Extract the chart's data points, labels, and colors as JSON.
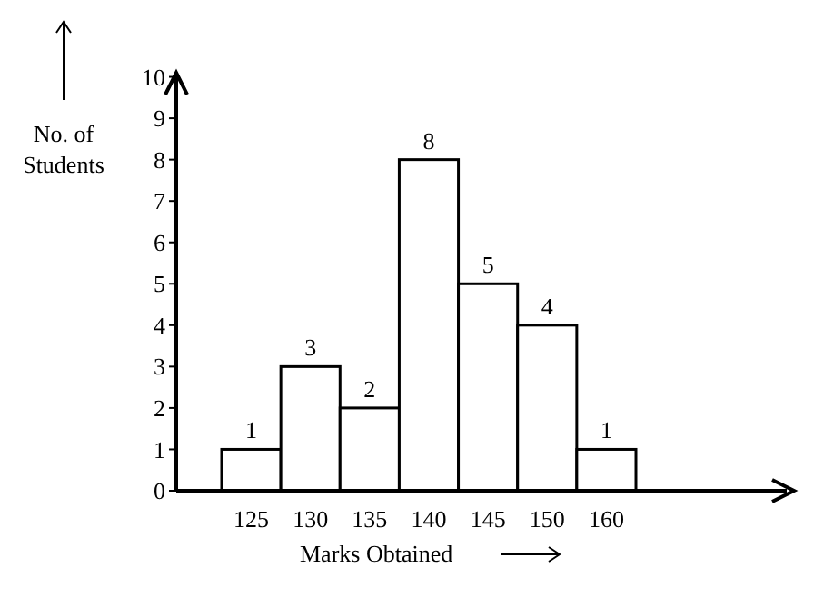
{
  "chart_data": {
    "type": "bar",
    "xlabel": "Marks Obtained",
    "ylabel": "No. of Students",
    "categories": [
      "125",
      "130",
      "135",
      "140",
      "145",
      "150",
      "160"
    ],
    "values": [
      1,
      3,
      2,
      8,
      5,
      4,
      1
    ],
    "color": "#ffffff",
    "ylim": [
      0,
      10.1
    ],
    "yticks": [
      0,
      1,
      2,
      3,
      4,
      5,
      6,
      7,
      8,
      9,
      10
    ],
    "data_labels": true
  }
}
